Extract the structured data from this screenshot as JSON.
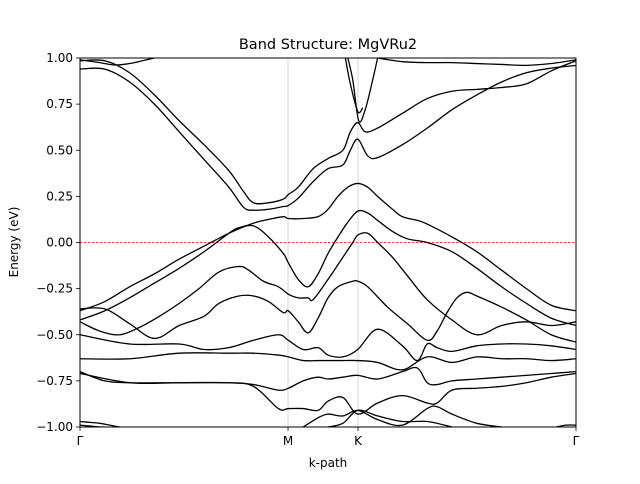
{
  "chart_data": {
    "type": "line",
    "title": "Band Structure: MgVRu2",
    "xlabel": "k-path",
    "ylabel": "Energy (eV)",
    "xlim": [
      0,
      1
    ],
    "ylim": [
      -1.0,
      1.0
    ],
    "grid": false,
    "legend": "none",
    "x_ticks": [
      {
        "pos": 0.0,
        "label": "Γ"
      },
      {
        "pos": 0.4194,
        "label": "M"
      },
      {
        "pos": 0.5605,
        "label": "K"
      },
      {
        "pos": 1.0,
        "label": "Γ"
      }
    ],
    "y_ticks": [
      -1.0,
      -0.75,
      -0.5,
      -0.25,
      0.0,
      0.25,
      0.5,
      0.75,
      1.0
    ],
    "y_tick_labels": [
      "−1.00",
      "−0.75",
      "−0.50",
      "−0.25",
      "0.00",
      "0.25",
      "0.50",
      "0.75",
      "1.00"
    ],
    "fermi_level": 0.0,
    "colors": {
      "bands": "#000000",
      "fermi": "#ff0000",
      "vlines": "#cccccc"
    },
    "series": [
      {
        "x": [
          0.0,
          0.04,
          0.07,
          0.1,
          0.13,
          0.15
        ],
        "y": [
          0.99,
          0.975,
          0.962,
          0.97,
          0.988,
          1.0
        ]
      },
      {
        "x": [
          0.0,
          0.05,
          0.1,
          0.15,
          0.2,
          0.25,
          0.3,
          0.33,
          0.35,
          0.38,
          0.41,
          0.42,
          0.44,
          0.47,
          0.5,
          0.53,
          0.545,
          0.56,
          0.575,
          0.6,
          0.65,
          0.7,
          0.75,
          0.8,
          0.85,
          0.9,
          0.95,
          1.0
        ],
        "y": [
          0.985,
          0.985,
          0.92,
          0.8,
          0.66,
          0.53,
          0.39,
          0.275,
          0.215,
          0.215,
          0.235,
          0.26,
          0.3,
          0.4,
          0.455,
          0.5,
          0.6,
          0.65,
          0.6,
          0.62,
          0.7,
          0.78,
          0.82,
          0.83,
          0.84,
          0.86,
          0.93,
          0.985
        ]
      },
      {
        "x": [
          0.0,
          0.05,
          0.1,
          0.15,
          0.2,
          0.25,
          0.3,
          0.33,
          0.35,
          0.38,
          0.41,
          0.42,
          0.44,
          0.47,
          0.5,
          0.53,
          0.545,
          0.56,
          0.58,
          0.6,
          0.65,
          0.7,
          0.75,
          0.8,
          0.85,
          0.9,
          0.95,
          1.0
        ],
        "y": [
          0.94,
          0.94,
          0.87,
          0.75,
          0.6,
          0.45,
          0.3,
          0.19,
          0.175,
          0.18,
          0.195,
          0.2,
          0.24,
          0.33,
          0.4,
          0.42,
          0.5,
          0.56,
          0.47,
          0.46,
          0.53,
          0.62,
          0.72,
          0.8,
          0.87,
          0.92,
          0.945,
          0.96
        ]
      },
      {
        "x": [
          0.535,
          0.545,
          0.56,
          0.57
        ],
        "y": [
          1.0,
          0.86,
          0.71,
          0.73
        ]
      },
      {
        "x": [
          0.54,
          0.55,
          0.562,
          0.575,
          0.59,
          0.6
        ],
        "y": [
          1.0,
          0.88,
          0.66,
          0.72,
          0.88,
          1.0
        ]
      },
      {
        "x": [
          0.6,
          0.65,
          0.7,
          0.75,
          0.8,
          0.85,
          0.9,
          0.95,
          1.0
        ],
        "y": [
          1.0,
          0.98,
          0.975,
          0.975,
          0.97,
          0.965,
          0.96,
          0.97,
          0.99
        ]
      },
      {
        "x": [
          0.0,
          0.05,
          0.1,
          0.15,
          0.2,
          0.25,
          0.3,
          0.35,
          0.38,
          0.41,
          0.42,
          0.45,
          0.48,
          0.5,
          0.52,
          0.54,
          0.56,
          0.58,
          0.6,
          0.63,
          0.65,
          0.68,
          0.7,
          0.75,
          0.8,
          0.85,
          0.9,
          0.95,
          1.0
        ],
        "y": [
          -0.37,
          -0.32,
          -0.24,
          -0.17,
          -0.09,
          -0.02,
          0.05,
          0.105,
          0.125,
          0.14,
          0.13,
          0.13,
          0.14,
          0.18,
          0.25,
          0.3,
          0.32,
          0.3,
          0.25,
          0.18,
          0.14,
          0.12,
          0.1,
          0.03,
          -0.05,
          -0.15,
          -0.25,
          -0.34,
          -0.37
        ]
      },
      {
        "x": [
          0.0,
          0.05,
          0.1,
          0.15,
          0.2,
          0.25,
          0.3,
          0.32,
          0.35,
          0.38,
          0.41,
          0.42,
          0.44,
          0.46,
          0.48,
          0.5,
          0.52,
          0.54,
          0.56,
          0.58,
          0.6,
          0.63,
          0.66,
          0.7,
          0.75,
          0.8,
          0.85,
          0.9,
          0.95,
          1.0
        ],
        "y": [
          -0.42,
          -0.37,
          -0.3,
          -0.22,
          -0.14,
          -0.05,
          0.05,
          0.08,
          0.09,
          0.03,
          -0.06,
          -0.11,
          -0.2,
          -0.24,
          -0.17,
          -0.06,
          0.03,
          0.11,
          0.17,
          0.16,
          0.12,
          0.06,
          0.02,
          0.0,
          -0.05,
          -0.14,
          -0.24,
          -0.33,
          -0.41,
          -0.45
        ]
      },
      {
        "x": [
          0.0,
          0.04,
          0.08,
          0.12,
          0.16,
          0.2,
          0.24,
          0.28,
          0.32,
          0.34,
          0.37,
          0.4,
          0.42,
          0.44,
          0.46,
          0.47,
          0.5,
          0.53,
          0.55,
          0.56,
          0.58,
          0.6,
          0.63,
          0.66,
          0.7,
          0.75,
          0.8,
          0.85,
          0.9,
          0.95,
          1.0
        ],
        "y": [
          -0.43,
          -0.48,
          -0.5,
          -0.46,
          -0.4,
          -0.33,
          -0.25,
          -0.16,
          -0.13,
          -0.15,
          -0.21,
          -0.24,
          -0.28,
          -0.3,
          -0.3,
          -0.31,
          -0.2,
          -0.08,
          0.0,
          0.04,
          0.05,
          0.0,
          -0.08,
          -0.18,
          -0.31,
          -0.42,
          -0.5,
          -0.45,
          -0.43,
          -0.45,
          -0.43
        ]
      },
      {
        "x": [
          0.0,
          0.05,
          0.1,
          0.15,
          0.2,
          0.25,
          0.28,
          0.32,
          0.35,
          0.38,
          0.41,
          0.42,
          0.44,
          0.46,
          0.48,
          0.5,
          0.52,
          0.55,
          0.56,
          0.58,
          0.62,
          0.66,
          0.7,
          0.72,
          0.74,
          0.76,
          0.78,
          0.8,
          0.85,
          0.9,
          0.95,
          1.0
        ],
        "y": [
          -0.36,
          -0.36,
          -0.44,
          -0.52,
          -0.45,
          -0.4,
          -0.33,
          -0.29,
          -0.29,
          -0.32,
          -0.38,
          -0.37,
          -0.43,
          -0.49,
          -0.41,
          -0.3,
          -0.24,
          -0.21,
          -0.21,
          -0.24,
          -0.35,
          -0.44,
          -0.53,
          -0.48,
          -0.38,
          -0.3,
          -0.27,
          -0.29,
          -0.35,
          -0.42,
          -0.5,
          -0.54
        ]
      },
      {
        "x": [
          0.0,
          0.1,
          0.2,
          0.25,
          0.3,
          0.35,
          0.4,
          0.42,
          0.45,
          0.48,
          0.5,
          0.53,
          0.56,
          0.6,
          0.65,
          0.68,
          0.7,
          0.72,
          0.75,
          0.8,
          0.85,
          0.9,
          0.95,
          1.0
        ],
        "y": [
          -0.5,
          -0.55,
          -0.55,
          -0.58,
          -0.57,
          -0.53,
          -0.5,
          -0.53,
          -0.58,
          -0.57,
          -0.61,
          -0.62,
          -0.58,
          -0.47,
          -0.56,
          -0.64,
          -0.55,
          -0.57,
          -0.59,
          -0.56,
          -0.55,
          -0.55,
          -0.56,
          -0.58
        ]
      },
      {
        "x": [
          0.0,
          0.1,
          0.2,
          0.3,
          0.35,
          0.4,
          0.42,
          0.45,
          0.48,
          0.52,
          0.56,
          0.6,
          0.65,
          0.7,
          0.75,
          0.8,
          0.85,
          0.9,
          0.95,
          1.0
        ],
        "y": [
          -0.63,
          -0.63,
          -0.6,
          -0.6,
          -0.6,
          -0.61,
          -0.62,
          -0.64,
          -0.64,
          -0.64,
          -0.64,
          -0.65,
          -0.69,
          -0.62,
          -0.65,
          -0.62,
          -0.63,
          -0.63,
          -0.64,
          -0.63
        ]
      },
      {
        "x": [
          0.0,
          0.05,
          0.1,
          0.2,
          0.3,
          0.35,
          0.4,
          0.42,
          0.45,
          0.48,
          0.5,
          0.53,
          0.56,
          0.6,
          0.65,
          0.68,
          0.7,
          0.72,
          0.75,
          0.8,
          0.85,
          0.9,
          0.95,
          1.0
        ],
        "y": [
          -0.7,
          -0.75,
          -0.76,
          -0.76,
          -0.76,
          -0.77,
          -0.8,
          -0.79,
          -0.75,
          -0.73,
          -0.74,
          -0.73,
          -0.72,
          -0.74,
          -0.7,
          -0.68,
          -0.76,
          -0.77,
          -0.75,
          -0.74,
          -0.73,
          -0.72,
          -0.71,
          -0.7
        ]
      },
      {
        "x": [
          0.0,
          0.1,
          0.2,
          0.3,
          0.35,
          0.4,
          0.42,
          0.45,
          0.48,
          0.5,
          0.53,
          0.56,
          0.6,
          0.65,
          0.7,
          0.72,
          0.75,
          0.8,
          0.85,
          0.9,
          0.95,
          1.0
        ],
        "y": [
          -0.71,
          -0.76,
          -0.76,
          -0.76,
          -0.78,
          -0.9,
          -0.9,
          -0.9,
          -0.91,
          -0.86,
          -0.84,
          -0.93,
          -0.87,
          -0.83,
          -0.87,
          -0.87,
          -0.8,
          -0.79,
          -0.78,
          -0.76,
          -0.73,
          -0.71
        ]
      },
      {
        "x": [
          0.45,
          0.48,
          0.5,
          0.53,
          0.56,
          0.6,
          0.65,
          0.7,
          0.72,
          0.75,
          0.8,
          0.85
        ],
        "y": [
          -1.0,
          -0.95,
          -0.93,
          -0.94,
          -0.91,
          -0.96,
          -0.99,
          -0.9,
          -0.89,
          -0.93,
          -0.98,
          -1.0
        ]
      },
      {
        "x": [
          0.5,
          0.53,
          0.56,
          0.6,
          0.65,
          0.7,
          0.75
        ],
        "y": [
          -1.0,
          -0.98,
          -0.91,
          -0.94,
          -0.97,
          -0.97,
          -1.0
        ]
      },
      {
        "x": [
          0.0,
          0.02,
          0.04,
          0.06,
          0.08
        ],
        "y": [
          -0.97,
          -0.975,
          -0.98,
          -0.99,
          -1.0
        ]
      },
      {
        "x": [
          0.0,
          0.02,
          0.04,
          0.05
        ],
        "y": [
          -0.99,
          -0.995,
          -1.0,
          -1.0
        ]
      },
      {
        "x": [
          0.96,
          0.98,
          1.0
        ],
        "y": [
          -1.0,
          -0.99,
          -0.99
        ]
      }
    ]
  }
}
